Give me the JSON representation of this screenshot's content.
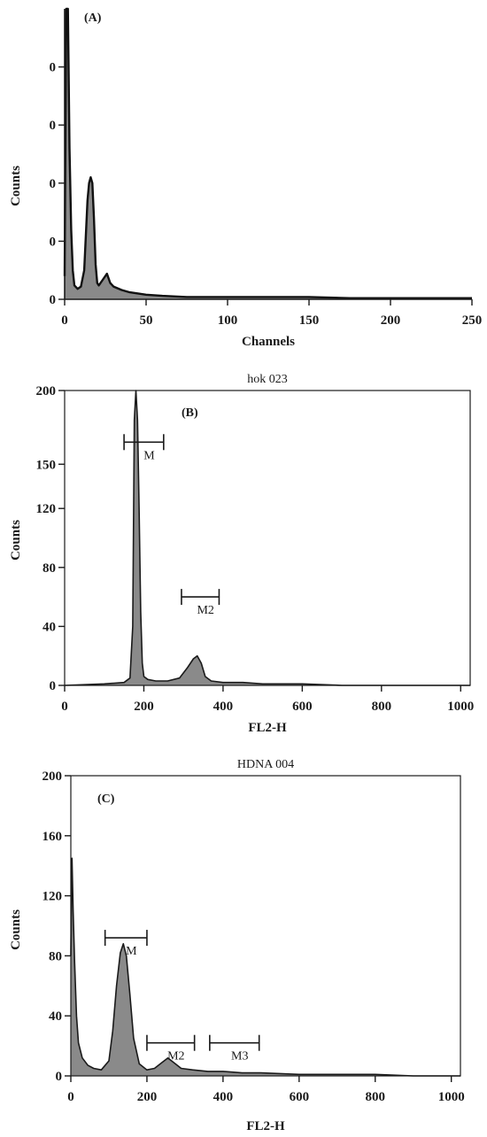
{
  "chart_data": [
    {
      "type": "area",
      "tag": "(A)",
      "title": "",
      "xlabel": "Channels",
      "ylabel": "Counts",
      "xlim": [
        0,
        250
      ],
      "ylim": [
        0,
        250
      ],
      "x_ticks": [
        0,
        50,
        100,
        150,
        200,
        250
      ],
      "x_tick_labels": [
        "0",
        "50",
        "100",
        "150",
        "200",
        "250"
      ],
      "y_ticks": [
        0,
        50,
        100,
        150,
        200
      ],
      "y_tick_labels": [
        "0",
        "0",
        "0",
        "0",
        "0"
      ],
      "frame": "left-bottom",
      "series": [
        {
          "x": [
            0,
            1,
            2,
            3,
            4,
            5,
            6,
            8,
            10,
            12,
            14,
            15,
            16,
            17,
            18,
            19,
            20,
            21,
            23,
            26,
            28,
            30,
            35,
            40,
            50,
            60,
            75,
            90,
            100,
            125,
            150,
            175,
            200,
            225,
            250
          ],
          "values": [
            20,
            250,
            250,
            130,
            60,
            25,
            12,
            9,
            11,
            25,
            85,
            100,
            105,
            100,
            70,
            30,
            14,
            12,
            16,
            22,
            14,
            11,
            8,
            6,
            4,
            3,
            2,
            2,
            2,
            2,
            2,
            1,
            1,
            1,
            1
          ]
        }
      ],
      "markers": []
    },
    {
      "type": "area",
      "tag": "(B)",
      "title": "hok 023",
      "xlabel": "FL2-H",
      "ylabel": "Counts",
      "xlim": [
        0,
        1024
      ],
      "ylim": [
        0,
        200
      ],
      "x_ticks": [
        0,
        200,
        400,
        600,
        800,
        1000
      ],
      "x_tick_labels": [
        "0",
        "200",
        "400",
        "600",
        "800",
        "1000"
      ],
      "y_ticks": [
        0,
        40,
        80,
        120,
        150,
        200
      ],
      "y_tick_labels": [
        "0",
        "40",
        "80",
        "120",
        "150",
        "200"
      ],
      "frame": "box",
      "series": [
        {
          "x": [
            0,
            100,
            150,
            165,
            172,
            176,
            180,
            184,
            188,
            192,
            196,
            200,
            210,
            230,
            260,
            290,
            310,
            325,
            335,
            345,
            355,
            370,
            400,
            450,
            500,
            600,
            700,
            800,
            900,
            1024
          ],
          "values": [
            0,
            1,
            2,
            5,
            40,
            180,
            200,
            180,
            120,
            50,
            15,
            6,
            4,
            3,
            3,
            5,
            12,
            18,
            20,
            15,
            6,
            3,
            2,
            2,
            1,
            1,
            0,
            0,
            0,
            0
          ]
        }
      ],
      "markers": [
        {
          "label": "M",
          "from": 150,
          "to": 250,
          "y": 165
        },
        {
          "label": "M2",
          "from": 295,
          "to": 390,
          "y": 60
        }
      ]
    },
    {
      "type": "area",
      "tag": "(C)",
      "title": "HDNA 004",
      "xlabel": "FL2-H",
      "ylabel": "Counts",
      "xlim": [
        0,
        1024
      ],
      "ylim": [
        0,
        200
      ],
      "x_ticks": [
        0,
        200,
        400,
        600,
        800,
        1000
      ],
      "x_tick_labels": [
        "0",
        "200",
        "400",
        "600",
        "800",
        "1000"
      ],
      "y_ticks": [
        0,
        40,
        80,
        120,
        160,
        200
      ],
      "y_tick_labels": [
        "0",
        "40",
        "80",
        "120",
        "160",
        "200"
      ],
      "frame": "box",
      "series": [
        {
          "x": [
            0,
            3,
            6,
            10,
            15,
            20,
            30,
            45,
            60,
            80,
            100,
            110,
            120,
            130,
            138,
            146,
            155,
            165,
            180,
            200,
            220,
            240,
            255,
            270,
            290,
            320,
            360,
            400,
            450,
            500,
            600,
            700,
            800,
            900,
            1024
          ],
          "values": [
            80,
            145,
            110,
            75,
            40,
            22,
            12,
            7,
            5,
            4,
            10,
            30,
            60,
            82,
            88,
            80,
            55,
            25,
            8,
            4,
            5,
            9,
            12,
            9,
            5,
            4,
            3,
            3,
            2,
            2,
            1,
            1,
            1,
            0,
            0
          ]
        }
      ],
      "markers": [
        {
          "label": "M",
          "from": 90,
          "to": 200,
          "y": 92
        },
        {
          "label": "M2",
          "from": 200,
          "to": 325,
          "y": 22
        },
        {
          "label": "M3",
          "from": 365,
          "to": 495,
          "y": 22
        }
      ]
    }
  ]
}
